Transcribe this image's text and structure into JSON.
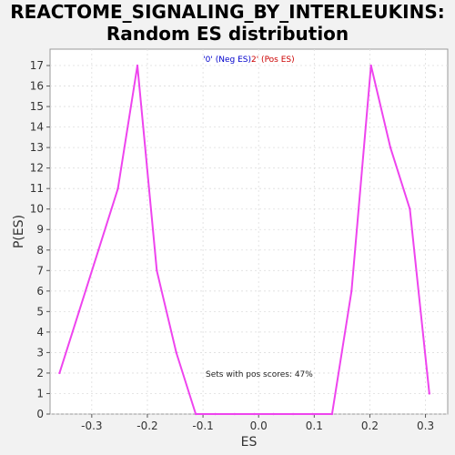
{
  "chart_data": {
    "type": "line",
    "title": "REACTOME_SIGNALING_BY_INTERLEUKINS:",
    "subtitle": "Random ES distribution",
    "xlabel": "ES",
    "ylabel": "P(ES)",
    "xlim": [
      -0.375,
      0.34
    ],
    "ylim": [
      0,
      17.8
    ],
    "x_ticks": [
      -0.3,
      -0.2,
      -0.1,
      0.0,
      0.1,
      0.2,
      0.3
    ],
    "x_tick_labels": [
      "-0.3",
      "-0.2",
      "-0.1",
      "0.0",
      "0.1",
      "0.2",
      "0.3"
    ],
    "y_ticks": [
      0,
      1,
      2,
      3,
      4,
      5,
      6,
      7,
      8,
      9,
      10,
      11,
      12,
      13,
      14,
      15,
      16,
      17
    ],
    "grid": true,
    "legend": {
      "neg_label": "'0' (Neg ES)",
      "pos_label": "2' (Pos ES)",
      "neg_color": "#0000cc",
      "pos_color": "#cc0000"
    },
    "annotation": "Sets with pos scores: 47%",
    "line_color": "#ee44ee",
    "series": [
      {
        "x": [
          -0.358,
          -0.323,
          -0.288,
          -0.253,
          -0.218,
          -0.183,
          -0.148,
          -0.113,
          -0.078,
          -0.043,
          -0.008,
          0.027,
          0.062,
          0.097,
          0.132,
          0.167,
          0.202,
          0.237,
          0.272,
          0.307
        ],
        "values": [
          2,
          5,
          8,
          11,
          17,
          7,
          3,
          0,
          0,
          0,
          0,
          0,
          0,
          0,
          0,
          6,
          17,
          13,
          10,
          1
        ]
      }
    ]
  }
}
